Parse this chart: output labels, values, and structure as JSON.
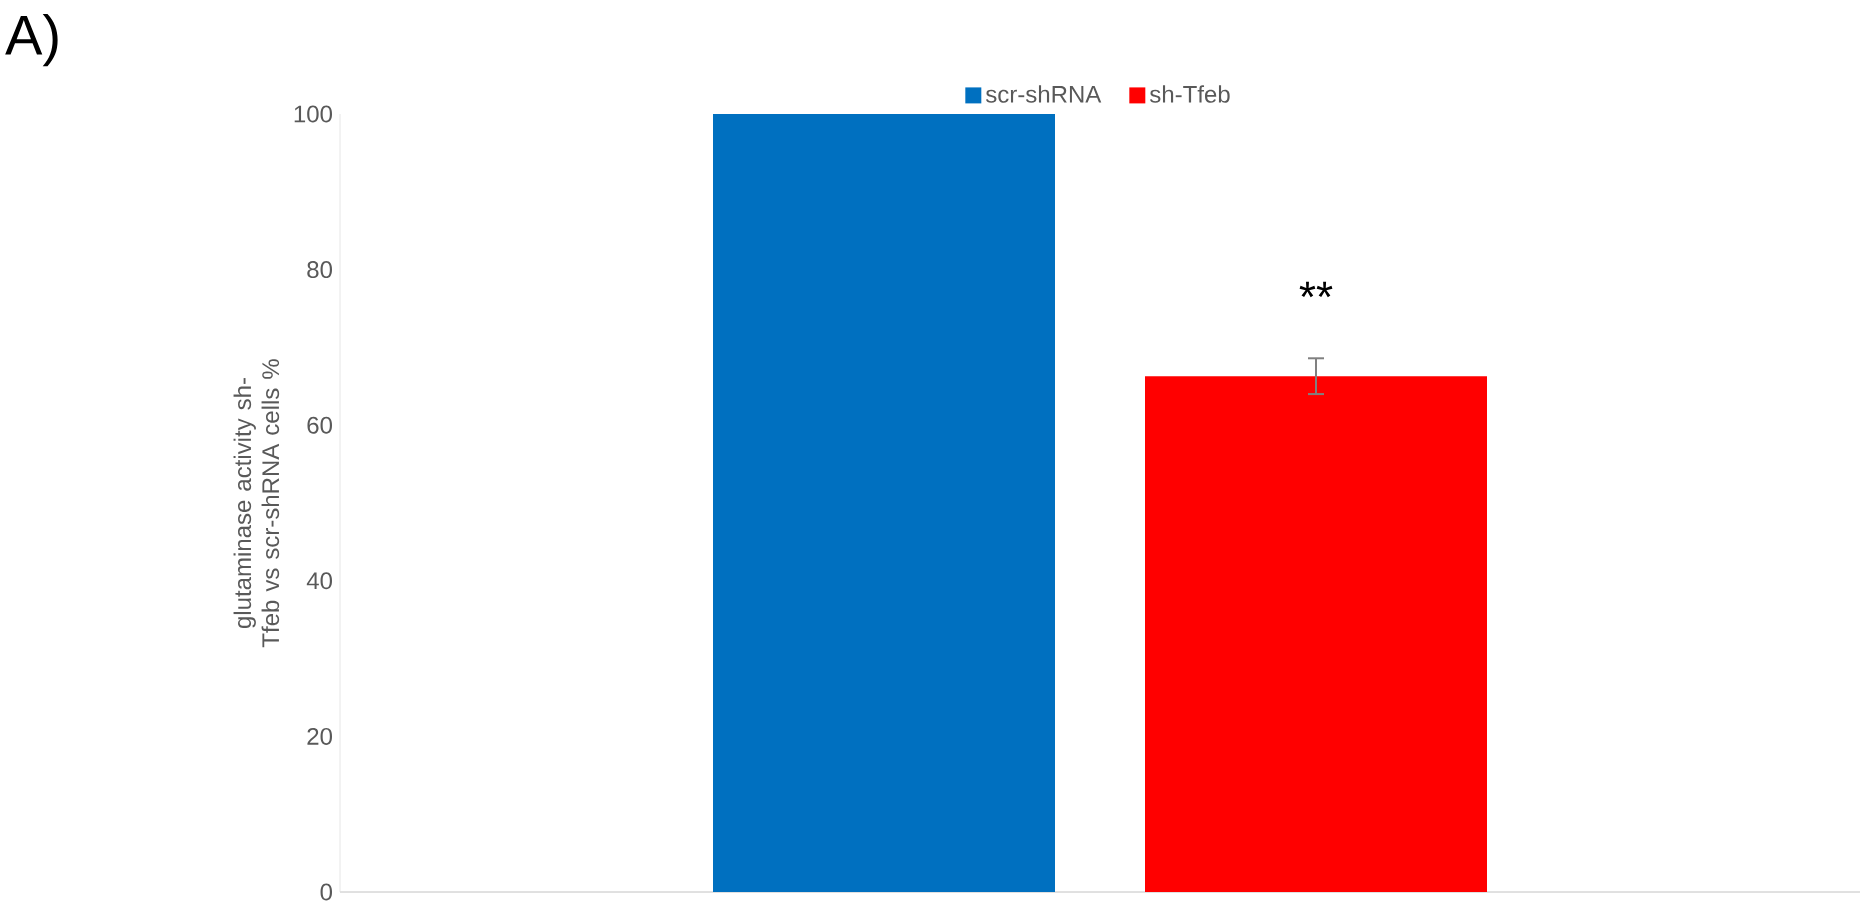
{
  "chart_data": {
    "type": "bar",
    "ylabel": "glutaminase activity sh-Tfeb vs scr-shRNA cells %",
    "categories": [
      null
    ],
    "series": [
      {
        "name": "scr-shRNA",
        "color": "#0070c0",
        "values": [
          100
        ]
      },
      {
        "name": "sh-Tfeb",
        "color": "#ff0000",
        "values": [
          66.3
        ],
        "errors": [
          2.3
        ]
      }
    ],
    "ylim": [
      0,
      100
    ],
    "yticks": [
      0,
      20,
      40,
      60,
      80,
      100
    ],
    "legend": "top",
    "grid": false,
    "annotations": [
      "A)",
      "**"
    ]
  }
}
